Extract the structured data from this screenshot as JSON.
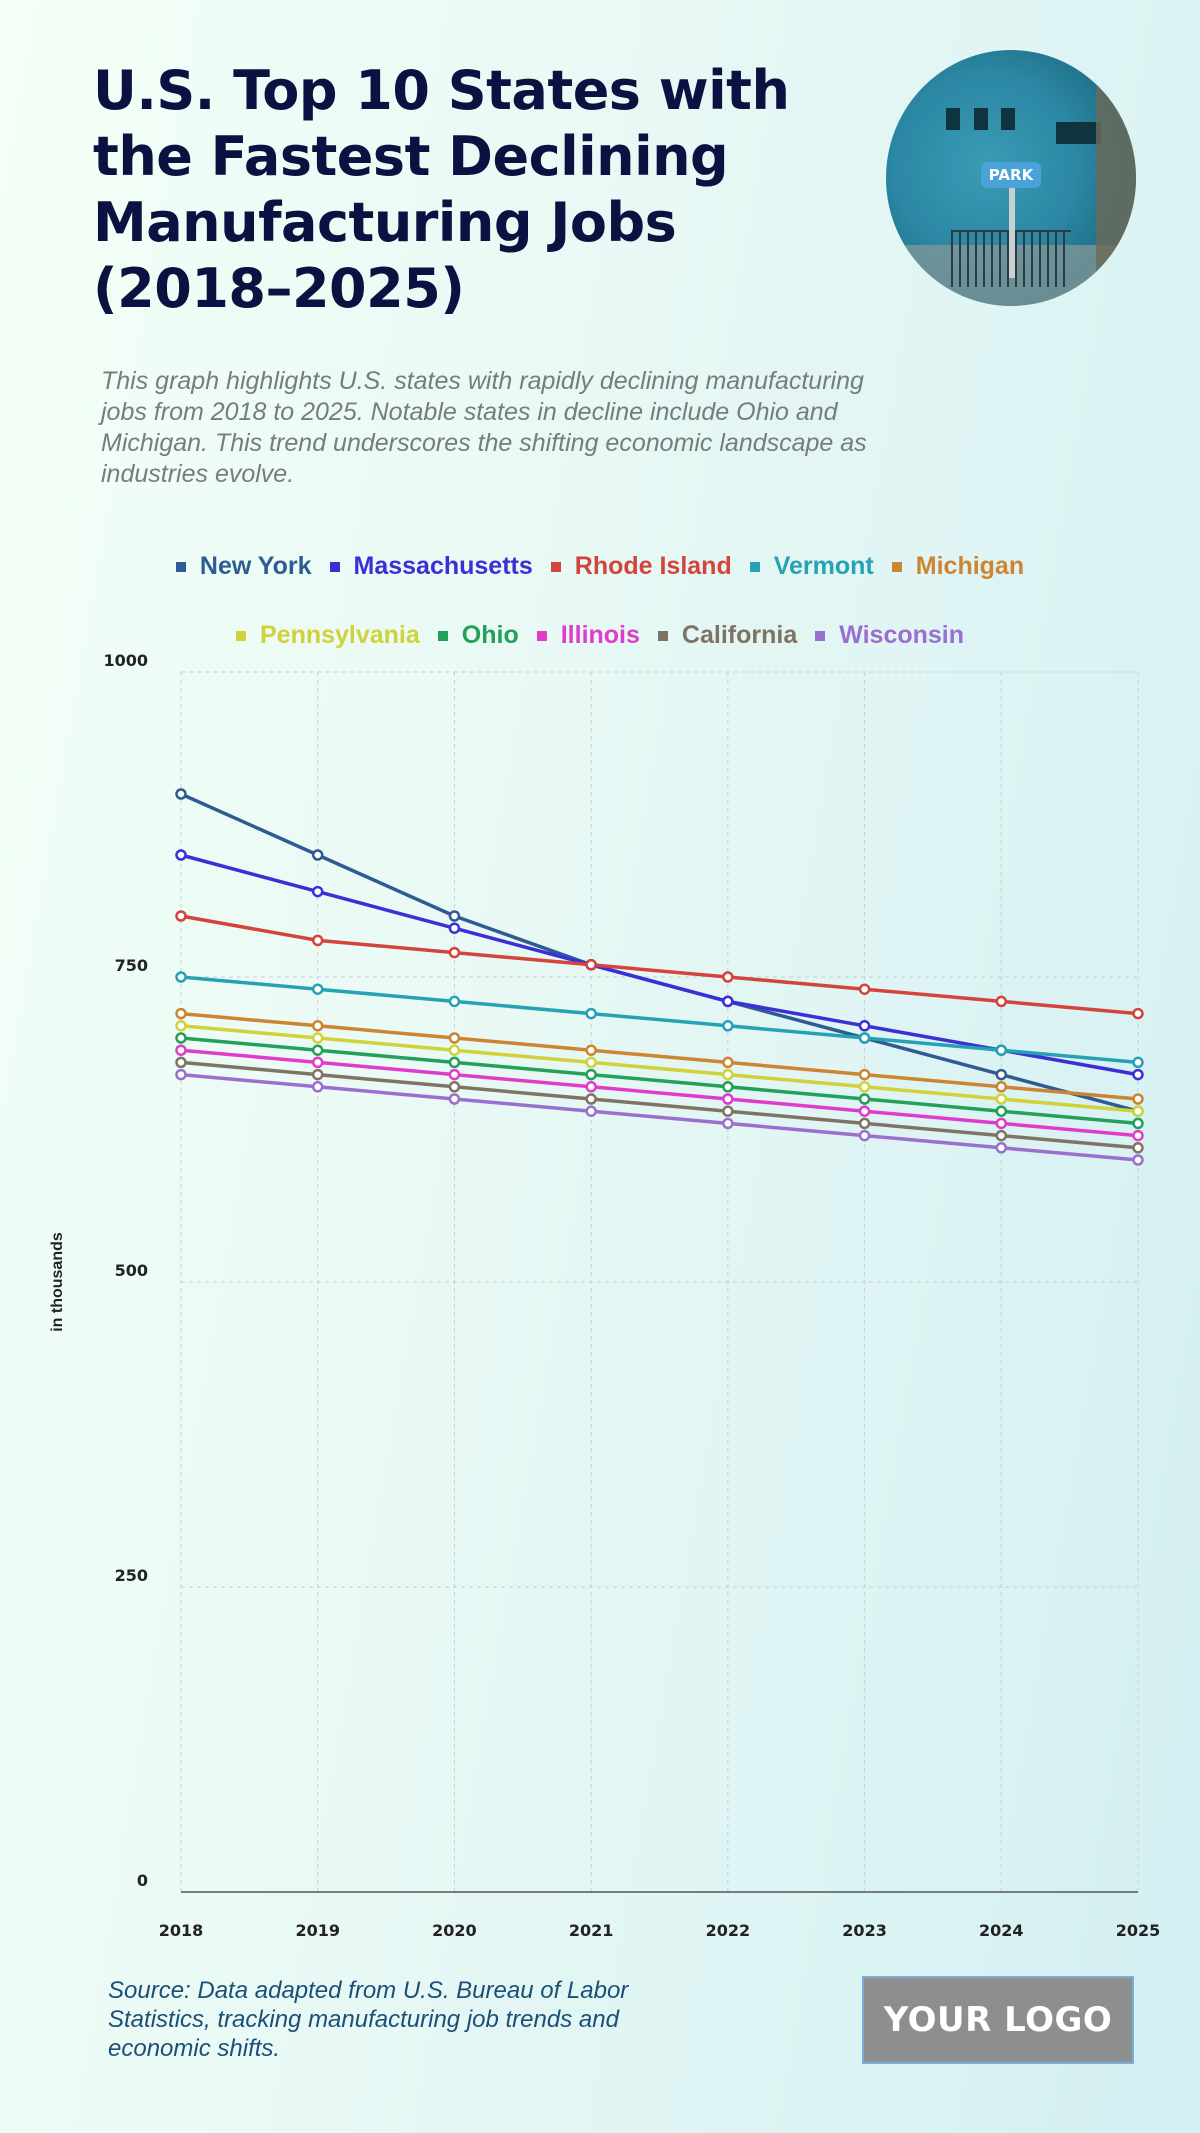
{
  "header": {
    "title": "U.S. Top 10 States with the Fastest Declining Manufacturing Jobs (2018–2025)",
    "subtitle": "This graph highlights U.S. states with rapidly declining manufacturing jobs from 2018 to 2025. Notable states in decline include Ohio and Michigan. This trend underscores the shifting economic landscape as industries evolve.",
    "photo_sign_text": "PARK"
  },
  "legend": {
    "row1": [
      {
        "label": "New York",
        "color": "#2f5b94"
      },
      {
        "label": "Massachusetts",
        "color": "#3b2fd6"
      },
      {
        "label": "Rhode Island",
        "color": "#d2443c"
      },
      {
        "label": "Vermont",
        "color": "#27a2b4"
      },
      {
        "label": "Michigan",
        "color": "#cc8530"
      }
    ],
    "row2": [
      {
        "label": "Pennsylvania",
        "color": "#cfd23a"
      },
      {
        "label": "Ohio",
        "color": "#23a05a"
      },
      {
        "label": "Illinois",
        "color": "#e03ccc"
      },
      {
        "label": "California",
        "color": "#7e7464"
      },
      {
        "label": "Wisconsin",
        "color": "#9a6fd0"
      }
    ]
  },
  "footer": {
    "source": "Source: Data adapted from U.S. Bureau of Labor Statistics, tracking manufacturing job trends and economic shifts.",
    "logo": "YOUR LOGO"
  },
  "chart_data": {
    "type": "line",
    "title": "U.S. Top 10 States with the Fastest Declining Manufacturing Jobs (2018–2025)",
    "xlabel": "",
    "ylabel": "in thousands",
    "x": [
      "2018",
      "2019",
      "2020",
      "2021",
      "2022",
      "2023",
      "2024",
      "2025"
    ],
    "ylim": [
      0,
      1000
    ],
    "yticks": [
      0,
      250,
      500,
      750,
      1000
    ],
    "grid": true,
    "legend_position": "top",
    "series": [
      {
        "name": "New York",
        "color": "#2f5b94",
        "values": [
          900,
          850,
          800,
          760,
          730,
          700,
          670,
          640
        ]
      },
      {
        "name": "Massachusetts",
        "color": "#3b2fd6",
        "values": [
          850,
          820,
          790,
          760,
          730,
          710,
          690,
          670
        ]
      },
      {
        "name": "Rhode Island",
        "color": "#d2443c",
        "values": [
          800,
          780,
          770,
          760,
          750,
          740,
          730,
          720
        ]
      },
      {
        "name": "Vermont",
        "color": "#27a2b4",
        "values": [
          750,
          740,
          730,
          720,
          710,
          700,
          690,
          680
        ]
      },
      {
        "name": "Michigan",
        "color": "#cc8530",
        "values": [
          720,
          710,
          700,
          690,
          680,
          670,
          660,
          650
        ]
      },
      {
        "name": "Pennsylvania",
        "color": "#cfd23a",
        "values": [
          710,
          700,
          690,
          680,
          670,
          660,
          650,
          640
        ]
      },
      {
        "name": "Ohio",
        "color": "#23a05a",
        "values": [
          700,
          690,
          680,
          670,
          660,
          650,
          640,
          630
        ]
      },
      {
        "name": "Illinois",
        "color": "#e03ccc",
        "values": [
          690,
          680,
          670,
          660,
          650,
          640,
          630,
          620
        ]
      },
      {
        "name": "California",
        "color": "#7e7464",
        "values": [
          680,
          670,
          660,
          650,
          640,
          630,
          620,
          610
        ]
      },
      {
        "name": "Wisconsin",
        "color": "#9a6fd0",
        "values": [
          670,
          660,
          650,
          640,
          630,
          620,
          610,
          600
        ]
      }
    ]
  }
}
